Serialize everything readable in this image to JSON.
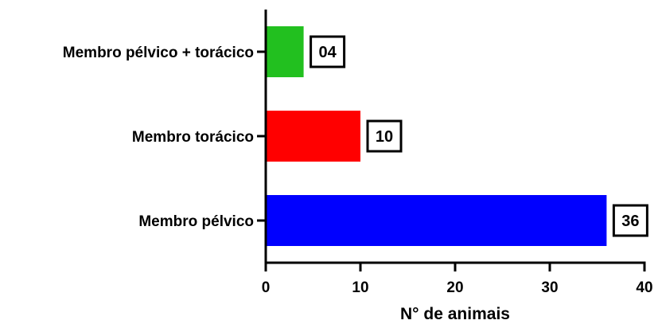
{
  "chart_data": {
    "type": "bar",
    "orientation": "horizontal",
    "categories": [
      "Membro pélvico + torácico",
      "Membro torácico",
      "Membro pélvico"
    ],
    "values": [
      4,
      10,
      36
    ],
    "data_labels": [
      "04",
      "10",
      "36"
    ],
    "colors": [
      "#22c01f",
      "#ff0000",
      "#0000ff"
    ],
    "xlabel": "N° de animais",
    "ylabel": "",
    "title": "",
    "xlim": [
      0,
      40
    ],
    "xticks": [
      0,
      10,
      20,
      30,
      40
    ],
    "xtick_labels": [
      "0",
      "10",
      "20",
      "30",
      "40"
    ],
    "grid": false,
    "legend": "none",
    "data_label_style": "boxed"
  }
}
